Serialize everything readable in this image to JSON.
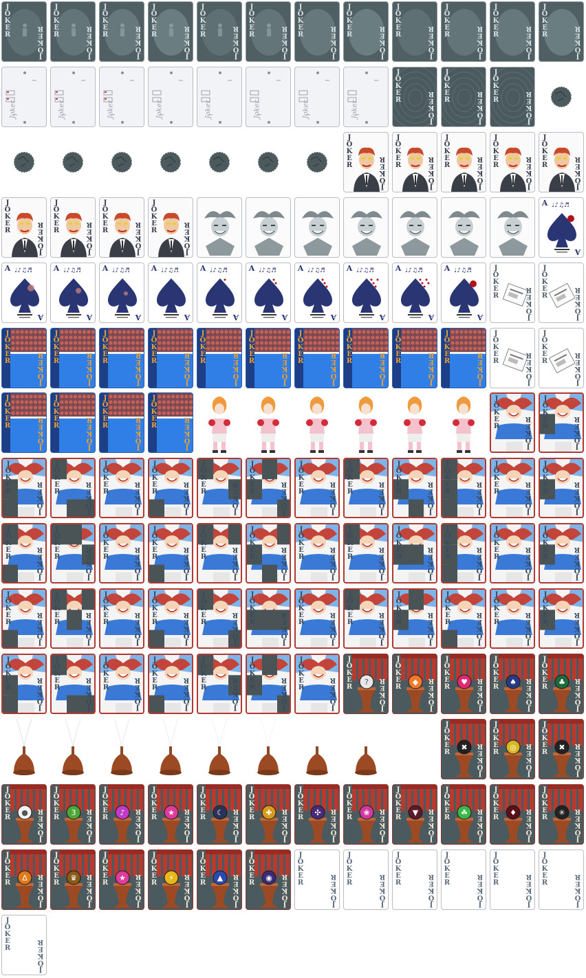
{
  "sheet": {
    "columns": 12,
    "rows": 14,
    "background": "#ffffff"
  },
  "labels": {
    "joker": "JOKER",
    "joker_script": "Joker",
    "ace": "A",
    "ace_script": "♩♪♫♬",
    "jok": "JOK",
    "er": "ER"
  },
  "palette": {
    "slate": "#4f5f63",
    "slate_light": "#7e9296",
    "paper": "#f2f3f6",
    "card_border": "#b8bcc6",
    "ace_blue": "#2a3574",
    "ace_red": "#b0121a",
    "boxing_blue": "#2f7fe6",
    "boxing_crowd": "#c86058",
    "curtain_red": "#b83a2e",
    "wood": "#9c4a24",
    "jester_red": "#c3443a",
    "jester_blue": "#3a7ad6",
    "frame_red": "#b03a32"
  },
  "groups": [
    {
      "type": "misty",
      "count": 12
    },
    {
      "type": "blank-card",
      "count": 8
    },
    {
      "type": "dark-card",
      "count": 3
    },
    {
      "type": "orb",
      "count": 8
    },
    {
      "type": "gangster",
      "count": 9
    },
    {
      "type": "jester-grey",
      "count": 7
    },
    {
      "type": "ace-spade",
      "count": 11
    },
    {
      "type": "joker-newspaper",
      "count": 2
    },
    {
      "type": "boxing",
      "count": 10
    },
    {
      "type": "joker-newspaper",
      "count": 2
    },
    {
      "type": "boxing",
      "count": 4
    },
    {
      "type": "boxer",
      "count": 6
    },
    {
      "type": "jester-puzzle",
      "count": 45
    },
    {
      "type": "pedestal",
      "icons": [
        "?",
        "◆",
        "♥",
        "♠",
        "♣"
      ]
    },
    {
      "type": "fountain",
      "count": 8
    },
    {
      "type": "skip",
      "count": 1
    },
    {
      "type": "pedestal",
      "icons": [
        "✖",
        "◎",
        "✖",
        "●"
      ]
    },
    {
      "type": "pedestal",
      "icons": [
        "3",
        "♪",
        "★",
        "☾",
        "✚",
        "✣",
        "❀",
        "▼",
        "☘",
        "♦",
        "✳",
        "∆",
        "♛",
        "★",
        "⚡",
        "▲",
        "◉"
      ]
    },
    {
      "type": "plain",
      "count": 7
    }
  ],
  "orb_colors": {
    "?": "#e8e8e8",
    "◆": "#f07a28",
    "♥": "#e02a72",
    "♠": "#2a3a82",
    "♣": "#1f6a3a",
    "✖": "#222222",
    "◎": "#d8b820",
    "●": "#f2f2f2",
    "3": "#4aa838",
    "♪": "#c03ac8",
    "★": "#e03a9a",
    "☾": "#2a3458",
    "✚": "#d89a18",
    "✣": "#4a2a7a",
    "❀": "#d03aa0",
    "▼": "#5a1a2a",
    "☘": "#3ab848",
    "♦": "#5a1018",
    "✳": "#222222",
    "∆": "#e07a18",
    "♛": "#8a5a18",
    "⚡": "#e8b818",
    "▲": "#2a4ab0",
    "◉": "#3a2a7a"
  }
}
